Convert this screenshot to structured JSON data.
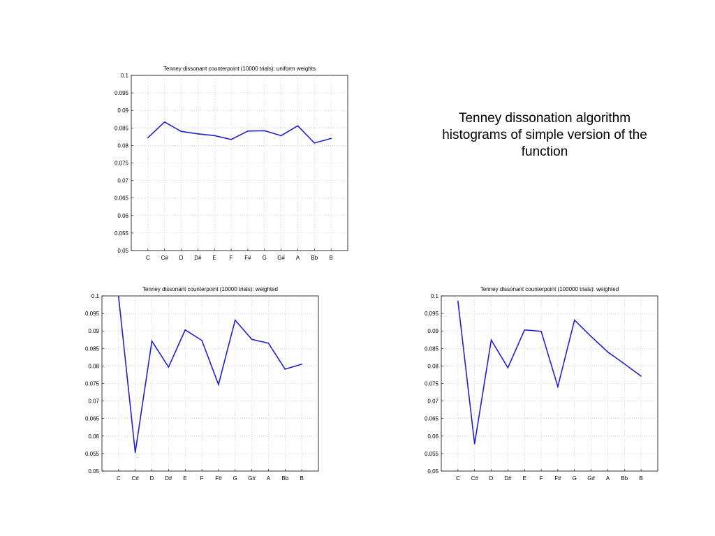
{
  "slide": {
    "caption": "Tenney dissonation algorithm histograms of simple version of the function"
  },
  "chart_data": [
    {
      "type": "line",
      "title": "Tenney dissonant counterpoint (10000 trials): uniform weights",
      "xlabel": "",
      "ylabel": "",
      "categories": [
        "C",
        "C#",
        "D",
        "D#",
        "E",
        "F",
        "F#",
        "G",
        "G#",
        "A",
        "Bb",
        "B"
      ],
      "yticks": [
        "0.05",
        "0.055",
        "0.06",
        "0.065",
        "0.07",
        "0.075",
        "0.08",
        "0.085",
        "0.09",
        "0.095",
        "0.1"
      ],
      "ylim": [
        0.05,
        0.1
      ],
      "grid": true,
      "color": "#1f1fd4",
      "series": [
        {
          "values": [
            0.0822,
            0.0867,
            0.084,
            0.0833,
            0.0828,
            0.0817,
            0.0841,
            0.0842,
            0.0828,
            0.0856,
            0.0807,
            0.082
          ]
        }
      ]
    },
    {
      "type": "line",
      "title": "Tenney dissonant counterpoint (10000 trials): weighted",
      "xlabel": "",
      "ylabel": "",
      "categories": [
        "C",
        "C#",
        "D",
        "D#",
        "E",
        "F",
        "F#",
        "G",
        "G#",
        "A",
        "Bb",
        "B"
      ],
      "yticks": [
        "0.05",
        "0.055",
        "0.06",
        "0.065",
        "0.07",
        "0.075",
        "0.08",
        "0.085",
        "0.09",
        "0.095",
        "0.1"
      ],
      "ylim": [
        0.05,
        0.1
      ],
      "grid": true,
      "color": "#1f1fd4",
      "series": [
        {
          "values": [
            0.0998,
            0.0553,
            0.0871,
            0.0797,
            0.0903,
            0.0873,
            0.0747,
            0.0931,
            0.0876,
            0.0865,
            0.0791,
            0.0805
          ]
        }
      ]
    },
    {
      "type": "line",
      "title": "Tenney dissonant counterpoint (100000 trials): weighted",
      "xlabel": "",
      "ylabel": "",
      "categories": [
        "C",
        "C#",
        "D",
        "D#",
        "E",
        "F",
        "F#",
        "G",
        "G#",
        "A",
        "Bb",
        "B"
      ],
      "yticks": [
        "0.05",
        "0.055",
        "0.06",
        "0.065",
        "0.07",
        "0.075",
        "0.08",
        "0.085",
        "0.09",
        "0.095",
        "0.1"
      ],
      "ylim": [
        0.05,
        0.1
      ],
      "grid": true,
      "color": "#1f1fd4",
      "series": [
        {
          "values": [
            0.0985,
            0.0578,
            0.0874,
            0.0795,
            0.0903,
            0.0899,
            0.0741,
            0.0931,
            0.0884,
            0.084,
            0.0806,
            0.0771
          ]
        }
      ]
    }
  ]
}
